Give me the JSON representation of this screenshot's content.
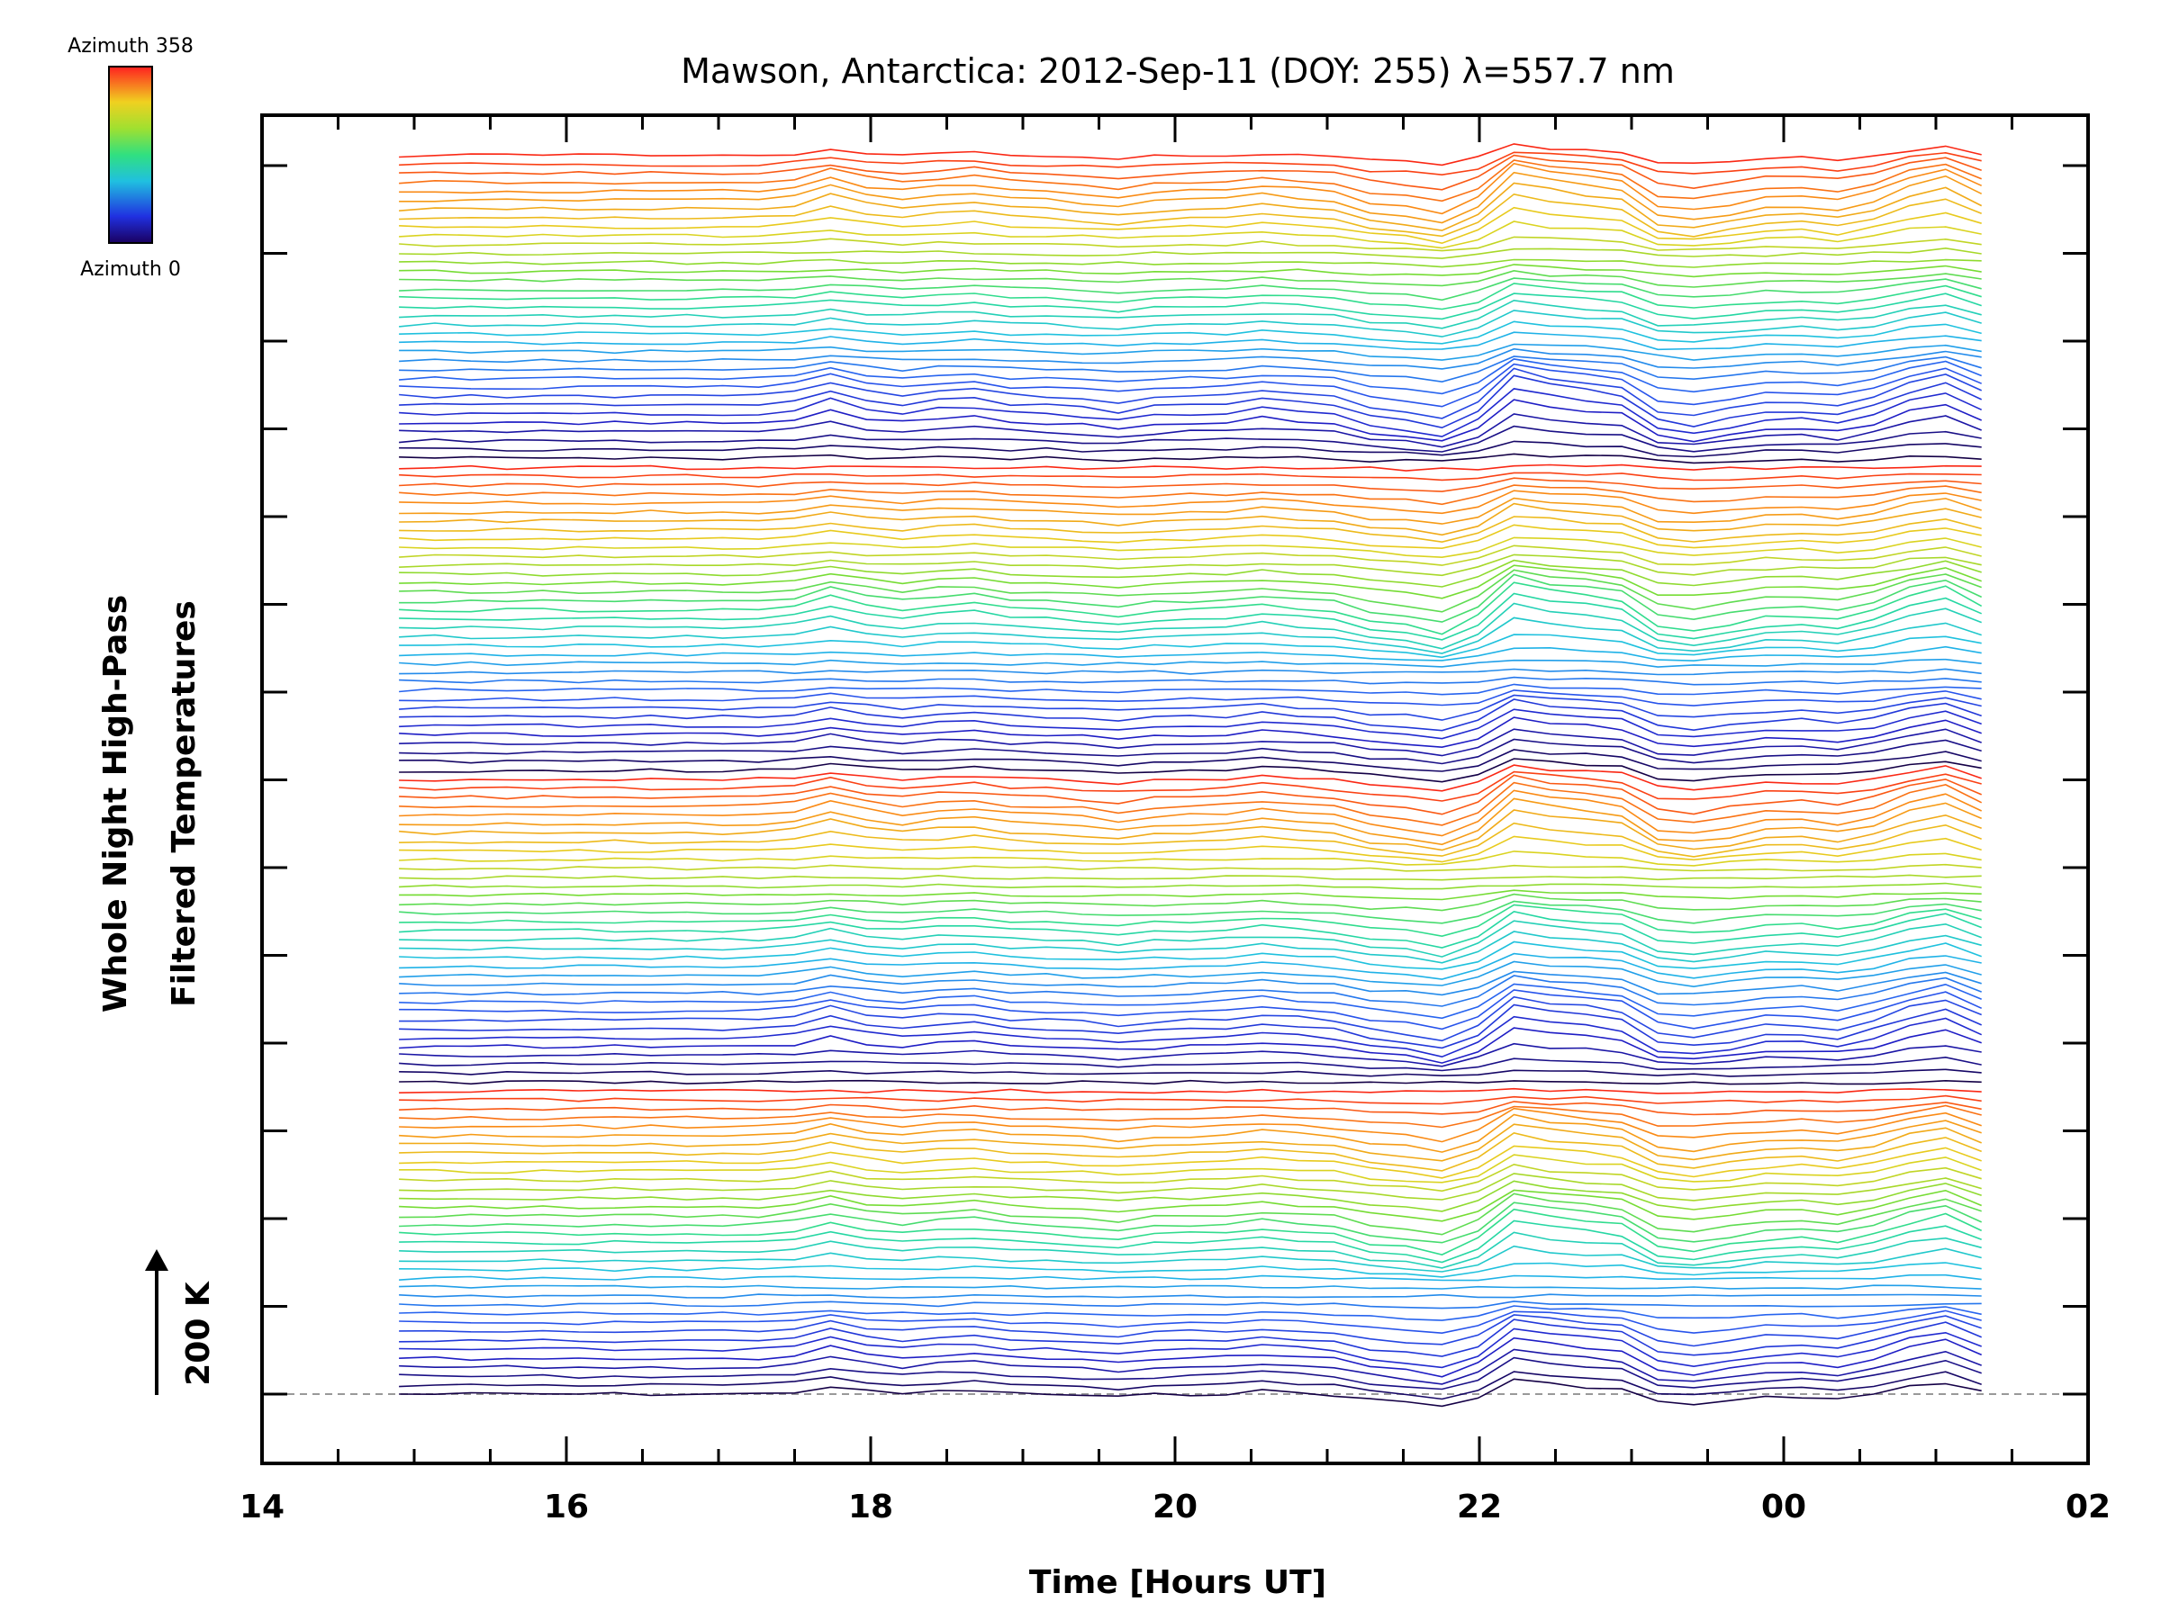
{
  "chart_data": {
    "type": "line",
    "title": "Mawson, Antarctica: 2012-Sep-11 (DOY: 255) λ=557.7 nm",
    "xlabel": "Time [Hours UT]",
    "ylabel_line1": "Whole Night High-Pass",
    "ylabel_line2": "Filtered Temperatures",
    "scale_bar_label": "200 K",
    "x_ticks": [
      "14",
      "16",
      "18",
      "20",
      "22",
      "00",
      "02"
    ],
    "xlim": [
      14,
      26
    ],
    "x_start": 14.9,
    "x_end": 25.3,
    "colorbar": {
      "top_label": "Azimuth 358",
      "bottom_label": "Azimuth 0",
      "min": 0,
      "max": 358
    },
    "series_count": 140,
    "grid": false,
    "legend": "colorbar top-left"
  }
}
